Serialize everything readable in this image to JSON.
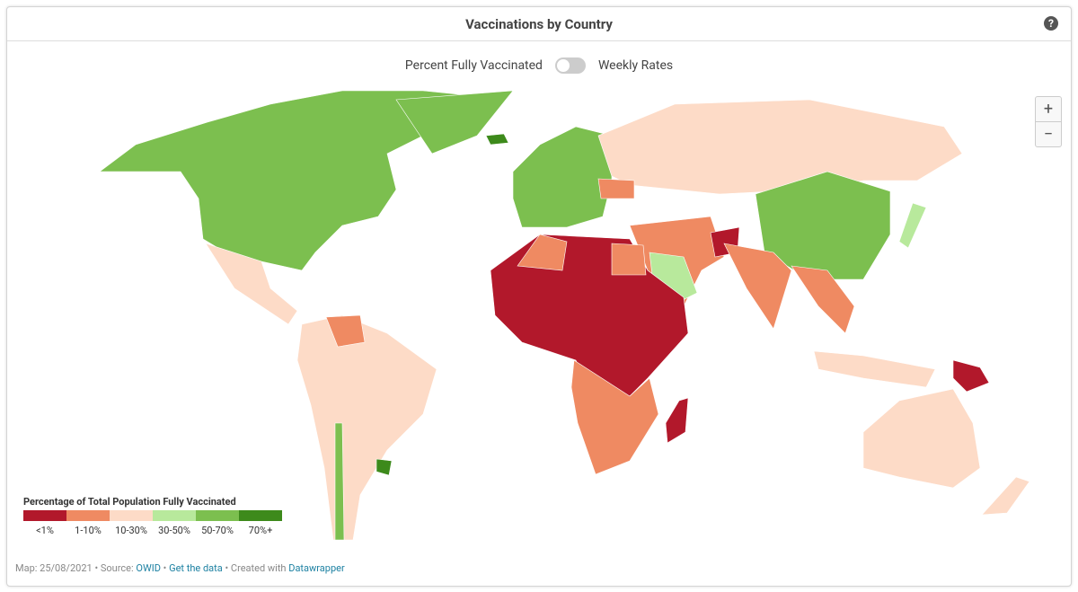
{
  "header": {
    "title": "Vaccinations by Country",
    "help": "?"
  },
  "toggle": {
    "left_label": "Percent Fully Vaccinated",
    "right_label": "Weekly Rates"
  },
  "zoom": {
    "in": "+",
    "out": "−"
  },
  "legend": {
    "title": "Percentage of Total Population Fully Vaccinated",
    "items": [
      {
        "label": "<1%",
        "color": "#b2182b"
      },
      {
        "label": "1-10%",
        "color": "#ef8a62"
      },
      {
        "label": "10-30%",
        "color": "#fddbc7"
      },
      {
        "label": "30-50%",
        "color": "#b8e99c"
      },
      {
        "label": "50-70%",
        "color": "#7cbf4f"
      },
      {
        "label": "70%+",
        "color": "#3d8a1b"
      }
    ]
  },
  "footer": {
    "date": "Map: 25/08/2021",
    "source_prefix": "• Source:",
    "source": "OWID",
    "sep": "•",
    "get_data": "Get the data",
    "created": "• Created with",
    "tool": "Datawrapper"
  }
}
